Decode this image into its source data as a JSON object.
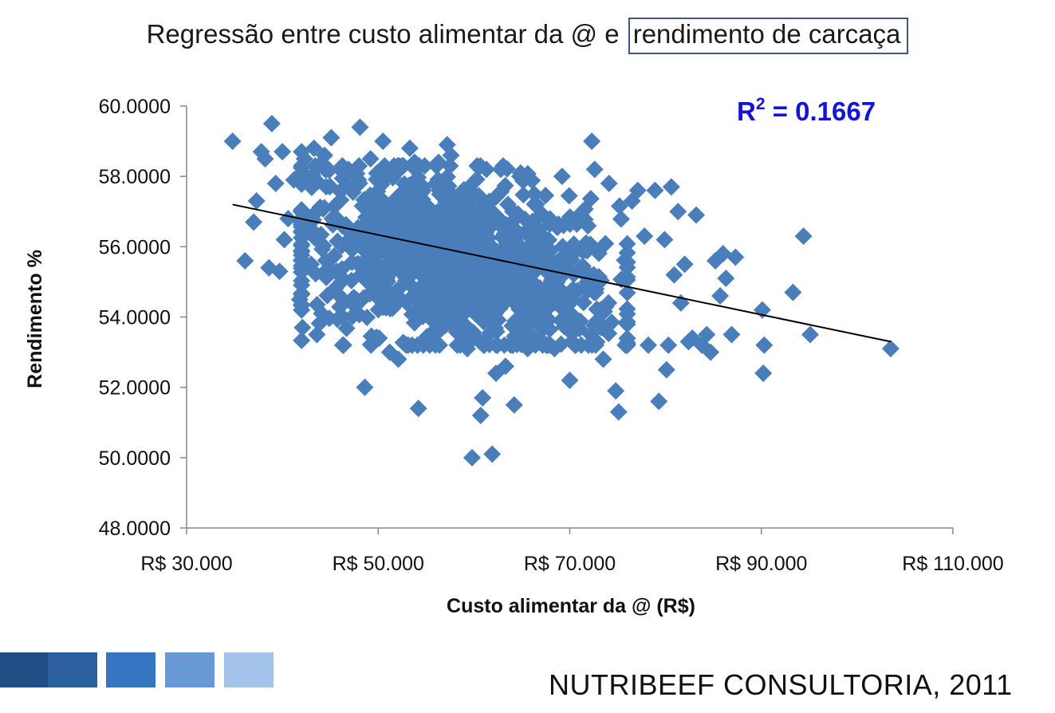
{
  "title_prefix": "Regressão entre custo alimentar da @ e ",
  "title_boxed": "rendimento de carcaça",
  "footer": "NUTRIBEEF CONSULTORIA, 2011",
  "colors": {
    "marker": "#4a7ebb",
    "trendline": "#000000",
    "r2": "#1414d6",
    "axis": "#888888",
    "footer_squares": [
      "#1f4e85",
      "#2b5f9e",
      "#3575c2",
      "#6699d6",
      "#a3c3ea"
    ]
  },
  "chart_data": {
    "type": "scatter",
    "xlabel": "Custo alimentar da @ (R$)",
    "ylabel": "Rendimento %",
    "xlim": [
      30000,
      110000
    ],
    "ylim": [
      48,
      60
    ],
    "x_ticks": [
      "R$ 30.000",
      "R$ 50.000",
      "R$ 70.000",
      "R$ 90.000",
      "R$ 110.000"
    ],
    "y_ticks": [
      "60.0000",
      "58.0000",
      "56.0000",
      "54.0000",
      "52.0000",
      "50.0000",
      "48.0000"
    ],
    "r2_label": "R",
    "r2_sup": "2",
    "r2_value": " = 0.1667",
    "trendline": {
      "x": [
        34800,
        103500
      ],
      "y": [
        57.2,
        53.3
      ]
    },
    "marker": "diamond",
    "cluster": {
      "x_mean": 58000,
      "x_sd": 8500,
      "y_mean": 55.6,
      "y_sd": 1.25,
      "slope": -5.7e-05,
      "n": 1100
    },
    "points": [
      [
        34800,
        59.0
      ],
      [
        36100,
        55.6
      ],
      [
        37000,
        56.7
      ],
      [
        37300,
        57.3
      ],
      [
        37800,
        58.7
      ],
      [
        38200,
        58.5
      ],
      [
        38600,
        55.4
      ],
      [
        38900,
        59.5
      ],
      [
        39300,
        57.8
      ],
      [
        39700,
        55.3
      ],
      [
        40000,
        58.7
      ],
      [
        40200,
        56.2
      ],
      [
        40600,
        56.8
      ],
      [
        41200,
        57.9
      ],
      [
        41800,
        54.5
      ],
      [
        42000,
        58.7
      ],
      [
        42100,
        53.7
      ],
      [
        42300,
        58.5
      ],
      [
        43000,
        55.5
      ],
      [
        43300,
        58.8
      ],
      [
        43600,
        53.5
      ],
      [
        44100,
        54.1
      ],
      [
        44400,
        58.6
      ],
      [
        45100,
        59.1
      ],
      [
        45700,
        55.3
      ],
      [
        46300,
        53.2
      ],
      [
        46900,
        58.2
      ],
      [
        47600,
        54.3
      ],
      [
        48100,
        59.4
      ],
      [
        48600,
        52.0
      ],
      [
        49200,
        58.5
      ],
      [
        50100,
        53.4
      ],
      [
        50500,
        59.0
      ],
      [
        51200,
        53.0
      ],
      [
        52100,
        52.8
      ],
      [
        53300,
        58.8
      ],
      [
        53800,
        58.4
      ],
      [
        54200,
        51.4
      ],
      [
        55800,
        53.6
      ],
      [
        56300,
        58.4
      ],
      [
        57200,
        58.9
      ],
      [
        57600,
        58.6
      ],
      [
        58400,
        53.7
      ],
      [
        59300,
        53.1
      ],
      [
        59800,
        50.0
      ],
      [
        60700,
        51.2
      ],
      [
        60900,
        51.7
      ],
      [
        61300,
        58.2
      ],
      [
        61900,
        50.1
      ],
      [
        62300,
        52.4
      ],
      [
        62800,
        58.2
      ],
      [
        63300,
        52.6
      ],
      [
        64200,
        51.5
      ],
      [
        64800,
        58.0
      ],
      [
        65600,
        53.1
      ],
      [
        66300,
        57.5
      ],
      [
        67200,
        56.9
      ],
      [
        68400,
        53.1
      ],
      [
        69200,
        58.0
      ],
      [
        70000,
        52.2
      ],
      [
        71200,
        53.2
      ],
      [
        72300,
        59.0
      ],
      [
        72600,
        58.2
      ],
      [
        73500,
        52.8
      ],
      [
        74100,
        57.8
      ],
      [
        74800,
        51.9
      ],
      [
        75100,
        51.3
      ],
      [
        75800,
        53.2
      ],
      [
        76500,
        57.3
      ],
      [
        77100,
        57.6
      ],
      [
        77800,
        56.3
      ],
      [
        78200,
        53.2
      ],
      [
        78900,
        57.6
      ],
      [
        79300,
        51.6
      ],
      [
        79900,
        56.2
      ],
      [
        80100,
        52.5
      ],
      [
        80300,
        53.2
      ],
      [
        80600,
        57.7
      ],
      [
        80900,
        55.2
      ],
      [
        81300,
        57.0
      ],
      [
        81600,
        54.4
      ],
      [
        82000,
        55.5
      ],
      [
        82400,
        53.3
      ],
      [
        82800,
        53.4
      ],
      [
        83200,
        56.9
      ],
      [
        83800,
        53.2
      ],
      [
        84300,
        53.5
      ],
      [
        84700,
        53.0
      ],
      [
        85200,
        55.6
      ],
      [
        85700,
        54.6
      ],
      [
        86000,
        55.8
      ],
      [
        86300,
        55.1
      ],
      [
        86900,
        53.5
      ],
      [
        87300,
        55.7
      ],
      [
        90100,
        54.2
      ],
      [
        90200,
        52.4
      ],
      [
        90300,
        53.2
      ],
      [
        93300,
        54.7
      ],
      [
        94400,
        56.3
      ],
      [
        95100,
        53.5
      ],
      [
        103500,
        53.1
      ]
    ]
  }
}
